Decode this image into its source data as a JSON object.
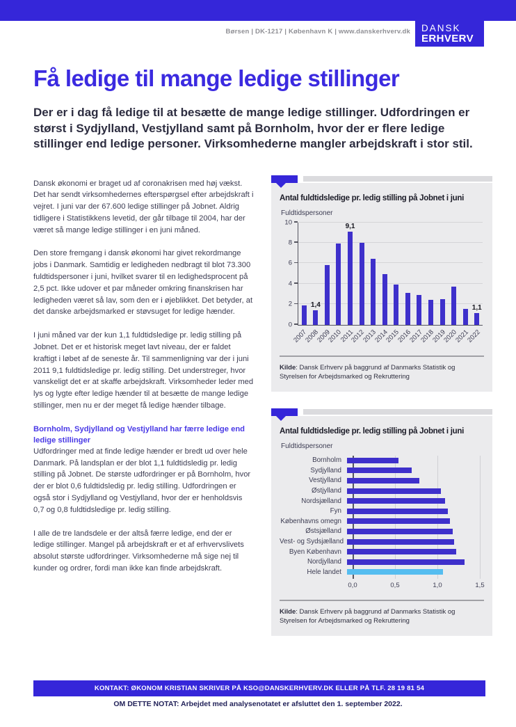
{
  "colors": {
    "brand": "#3526d9",
    "heading": "#3b2ae0",
    "accent_subheading": "#4939e6",
    "bar_blue": "#3e30cb",
    "bar_light_blue": "#55bdf0",
    "card_bg": "#ebebed",
    "contact_bar": "#3526d9",
    "note_text": "#23235a"
  },
  "header": {
    "meta_line": "Børsen | DK-1217 | København K | www.danskerhverv.dk",
    "logo_line1": "DANSK",
    "logo_line2": "ERHVERV"
  },
  "article": {
    "title": "Få ledige til mange ledige stillinger",
    "intro": "Der er i dag få ledige til at besætte de mange ledige stillinger. Udfordringen er størst i Sydjylland, Vestjylland samt på Bornholm, hvor der er flere ledige stillinger end ledige personer. Virksomhederne mangler arbejdskraft i stor stil.",
    "paragraphs": [
      "Dansk økonomi er braget ud af coronakrisen med høj vækst. Det har sendt virksomhedernes efterspørgsel efter arbejdskraft i vejret. I juni var der 67.600 ledige stillinger på Jobnet. Aldrig tidligere i Statistikkens levetid, der går tilbage til 2004, har der været så mange ledige stillinger i en juni måned.",
      "Den store fremgang i dansk økonomi har givet rekordmange jobs i Danmark. Samtidig er ledigheden nedbragt til blot 73.300 fuldtidspersoner i juni, hvilket svarer til en ledighedsprocent på 2,5 pct. Ikke udover et par måneder omkring finanskrisen har ledigheden været så lav, som den er i øjeblikket. Det betyder, at det danske arbejdsmarked er støvsuget for ledige hænder.",
      "I juni måned var der kun 1,1 fuldtidsledige pr. ledig stilling på Jobnet. Det er et historisk meget lavt niveau, der er faldet kraftigt i løbet af de seneste år. Til sammenligning var der i juni 2011 9,1 fuldtidsledige pr. ledig stilling. Det understreger, hvor vanskeligt det er at skaffe arbejdskraft. Virksomheder leder med lys og lygte efter ledige hænder til at besætte de mange ledige stillinger, men nu er der meget få ledige hænder tilbage."
    ],
    "subheading": "Bornholm, Sydjylland og Vestjylland har færre ledige end ledige stillinger",
    "paragraphs2": [
      "Udfordringer med at finde ledige hænder er bredt ud over hele Danmark. På landsplan er der blot 1,1 fuldtidsledig pr. ledig stilling på Jobnet. De største udfordringer er på Bornholm, hvor der er blot 0,6 fuldtidsledig pr. ledig stilling. Udfordringen er også stor i Sydjylland og Vestjylland, hvor der er henholdsvis 0,7 og 0,8 fuldtidsledige pr. ledig stilling.",
      "I alle de tre landsdele er der altså færre ledige, end der er ledige stillinger. Mangel på arbejdskraft er et af erhvervslivets absolut største udfordringer. Virksomhederne må sige nej til kunder og ordrer, fordi man ikke kan finde arbejdskraft."
    ]
  },
  "chart_data": [
    {
      "type": "bar",
      "title": "Antal fuldtidsledige pr. ledig stilling på Jobnet i juni",
      "unit_label": "Fuldtidspersoner",
      "categories": [
        "2007",
        "2008",
        "2009",
        "2010",
        "2011",
        "2012",
        "2013",
        "2014",
        "2015",
        "2016",
        "2017",
        "2018",
        "2019",
        "2020",
        "2021",
        "2022"
      ],
      "values": [
        1.9,
        1.4,
        5.8,
        7.9,
        9.1,
        8.0,
        6.4,
        4.9,
        3.9,
        3.1,
        2.9,
        2.4,
        2.5,
        3.7,
        1.5,
        1.1
      ],
      "point_labels": [
        null,
        "1,4",
        null,
        null,
        "9,1",
        null,
        null,
        null,
        null,
        null,
        null,
        null,
        null,
        null,
        null,
        "1,1"
      ],
      "ylim": [
        0,
        10
      ],
      "yticks": [
        0,
        2,
        4,
        6,
        8,
        10
      ],
      "grid": true,
      "source_bold": "Kilde",
      "source_rest": ": Dansk Erhverv på baggrund af Danmarks Statistik og Styrelsen for Arbejdsmarked og Rekruttering"
    },
    {
      "type": "bar-horizontal",
      "title": "Antal fuldtidsledige pr. ledig stilling på Jobnet i juni",
      "unit_label": "Fuldtidspersoner",
      "categories": [
        "Bornholm",
        "Sydjylland",
        "Vestjylland",
        "Østjylland",
        "Nordsjælland",
        "Fyn",
        "Københavns omegn",
        "Østsjælland",
        "Vest- og Sydsjælland",
        "Byen København",
        "Nordjylland",
        "Hele landet"
      ],
      "values": [
        0.58,
        0.73,
        0.82,
        1.06,
        1.11,
        1.14,
        1.16,
        1.19,
        1.21,
        1.23,
        1.33,
        1.08
      ],
      "xlim": [
        0,
        1.5
      ],
      "xticks": [
        0,
        0.5,
        1.0,
        1.5
      ],
      "xtick_labels": [
        "0,0",
        "0,5",
        "1,0",
        "1,5"
      ],
      "highlight_index": 11,
      "grid": true,
      "source_bold": "Kilde",
      "source_rest": ": Dansk Erhverv på baggrund af Danmarks Statistik og Styrelsen for Arbejdsmarked og Rekruttering"
    }
  ],
  "footer": {
    "contact": "KONTAKT:  ØKONOM KRISTIAN SKRIVER PÅ KSO@DANSKERHVERV.DK ELLER PÅ TLF. 28 19 81 54",
    "note": "OM DETTE NOTAT: Arbejdet med analysenotatet er afsluttet den 1. september 2022."
  }
}
